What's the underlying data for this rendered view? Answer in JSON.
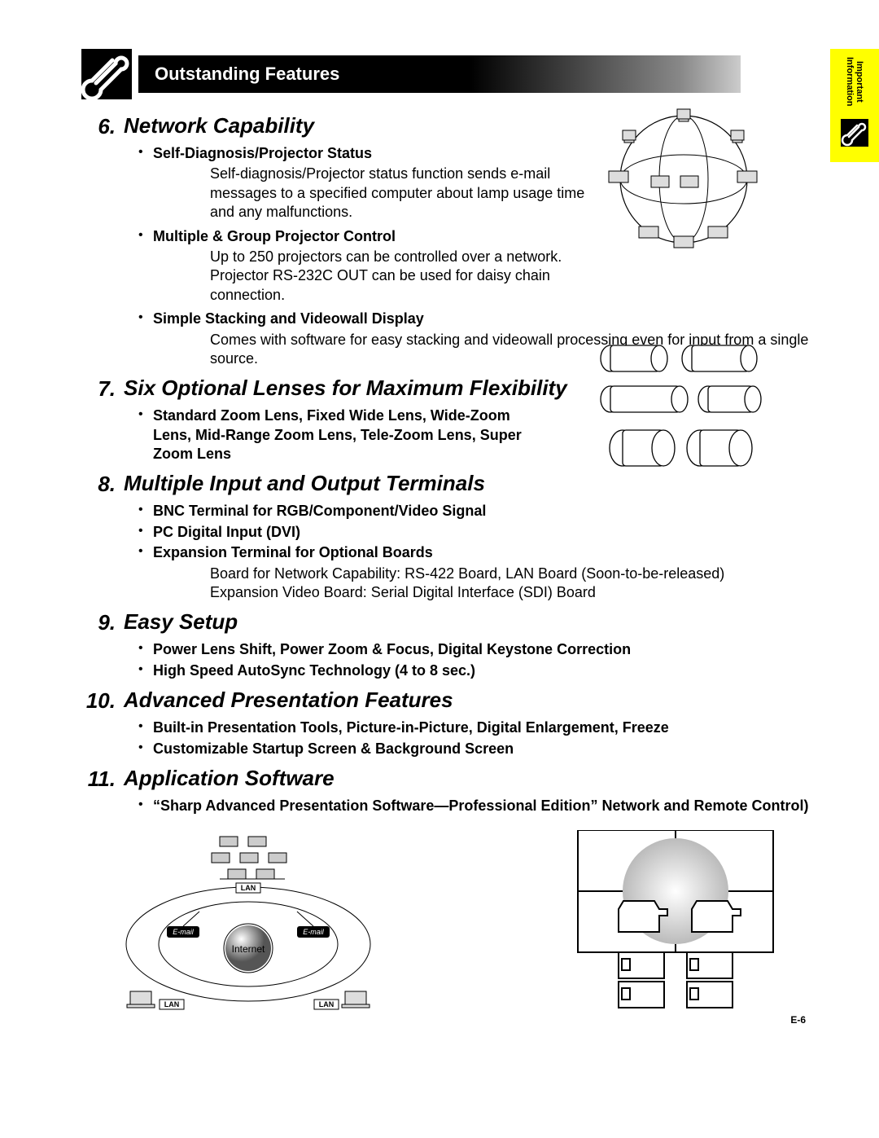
{
  "header": {
    "title": "Outstanding Features"
  },
  "sidetab": {
    "line1": "Important",
    "line2": "Information"
  },
  "sections": [
    {
      "num": "6.",
      "title": "Network Capability",
      "bullets": [
        {
          "head": "Self-Diagnosis/Projector Status",
          "body": "Self-diagnosis/Projector status function sends e-mail messages to a specified computer about lamp usage time and any malfunctions.",
          "narrow": true
        },
        {
          "head": "Multiple & Group Projector Control",
          "body": "Up to 250 projectors can be controlled over a network. Projector RS-232C OUT can be used for daisy chain connection.",
          "narrow": true
        },
        {
          "head": "Simple Stacking and Videowall Display",
          "body": "Comes with software for easy stacking and videowall processing even for input from a single source.",
          "narrow": false
        }
      ]
    },
    {
      "num": "7.",
      "title": "Six Optional Lenses for Maximum Flexibility",
      "bullets": [
        {
          "head": "Standard Zoom Lens, Fixed Wide Lens, Wide-Zoom Lens, Mid-Range Zoom Lens, Tele-Zoom Lens, Super Zoom Lens",
          "body": null,
          "narrow": true
        }
      ]
    },
    {
      "num": "8.",
      "title": "Multiple Input and Output Terminals",
      "bullets": [
        {
          "head": "BNC Terminal for RGB/Component/Video Signal",
          "body": null
        },
        {
          "head": "PC Digital Input (DVI)",
          "body": null
        },
        {
          "head": "Expansion Terminal for Optional Boards",
          "body": "Board for Network Capability: RS-422 Board, LAN Board (Soon-to-be-released)\nExpansion Video Board: Serial Digital Interface (SDI) Board"
        }
      ]
    },
    {
      "num": "9.",
      "title": "Easy Setup",
      "bullets": [
        {
          "head": "Power Lens Shift, Power Zoom & Focus, Digital Keystone Correction",
          "body": null
        },
        {
          "head": "High Speed AutoSync Technology (4 to 8 sec.)",
          "body": null
        }
      ]
    },
    {
      "num": "10.",
      "title": "Advanced Presentation Features",
      "bullets": [
        {
          "head": "Built-in Presentation Tools, Picture-in-Picture, Digital Enlargement, Freeze",
          "body": null
        },
        {
          "head": "Customizable Startup Screen & Background Screen",
          "body": null
        }
      ]
    },
    {
      "num": "11.",
      "title": "Application Software",
      "bullets": [
        {
          "head": "“Sharp Advanced Presentation Software—Professional Edition” Network and Remote Control)",
          "body": null
        }
      ]
    }
  ],
  "diagram_labels": {
    "lan": "LAN",
    "email": "E-mail",
    "internet": "Internet"
  },
  "page_number": "E-6",
  "colors": {
    "tab_bg": "#ffff00",
    "header_gradient_start": "#000000",
    "header_gradient_end": "#cccccc",
    "text": "#000000"
  }
}
